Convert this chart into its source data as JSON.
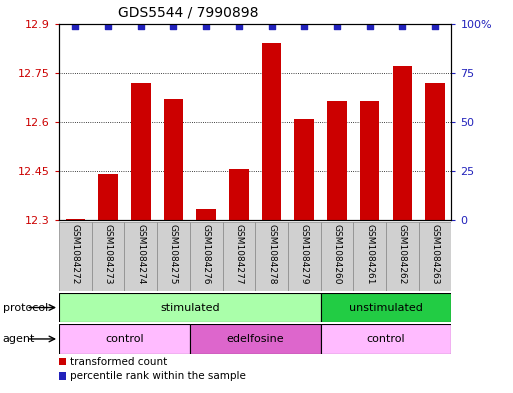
{
  "title": "GDS5544 / 7990898",
  "samples": [
    "GSM1084272",
    "GSM1084273",
    "GSM1084274",
    "GSM1084275",
    "GSM1084276",
    "GSM1084277",
    "GSM1084278",
    "GSM1084279",
    "GSM1084260",
    "GSM1084261",
    "GSM1084262",
    "GSM1084263"
  ],
  "bar_values": [
    12.302,
    12.44,
    12.72,
    12.67,
    12.335,
    12.455,
    12.84,
    12.61,
    12.665,
    12.665,
    12.77,
    12.72
  ],
  "percentile_values": [
    99,
    99,
    99,
    99,
    99,
    99,
    99,
    99,
    99,
    99,
    99,
    99
  ],
  "bar_color": "#cc0000",
  "percentile_color": "#2222bb",
  "ylim_left": [
    12.3,
    12.9
  ],
  "ylim_right": [
    0,
    100
  ],
  "yticks_left": [
    12.3,
    12.45,
    12.6,
    12.75,
    12.9
  ],
  "yticks_right": [
    0,
    25,
    50,
    75,
    100
  ],
  "ytick_labels_right": [
    "0",
    "25",
    "50",
    "75",
    "100%"
  ],
  "bar_width": 0.6,
  "sample_box_color": "#d0d0d0",
  "sample_box_edge": "#888888",
  "protocol_groups": [
    {
      "label": "stimulated",
      "start": 0,
      "end": 8,
      "color": "#aaffaa"
    },
    {
      "label": "unstimulated",
      "start": 8,
      "end": 12,
      "color": "#22cc44"
    }
  ],
  "agent_groups": [
    {
      "label": "control",
      "start": 0,
      "end": 4,
      "color": "#ffbbff"
    },
    {
      "label": "edelfosine",
      "start": 4,
      "end": 8,
      "color": "#dd66cc"
    },
    {
      "label": "control",
      "start": 8,
      "end": 12,
      "color": "#ffbbff"
    }
  ],
  "legend_items": [
    {
      "label": "transformed count",
      "color": "#cc0000"
    },
    {
      "label": "percentile rank within the sample",
      "color": "#2222bb"
    }
  ],
  "xlabel_protocol": "protocol",
  "xlabel_agent": "agent",
  "background_color": "#ffffff",
  "label_color_left": "#cc0000",
  "label_color_right": "#2222bb"
}
